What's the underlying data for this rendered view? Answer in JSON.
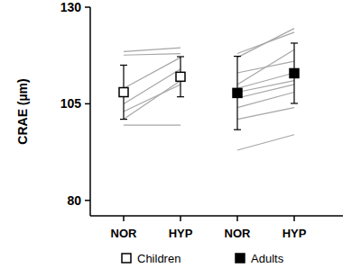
{
  "chart_data": {
    "type": "line",
    "ylabel": "CRAE (µm)",
    "categories": [
      "NOR",
      "HYP",
      "NOR",
      "HYP"
    ],
    "ylim": [
      76,
      130
    ],
    "yticks": [
      80,
      105,
      130
    ],
    "legend": "bottom",
    "series": [
      {
        "name": "Children",
        "color": "#000000",
        "marker": "square-open",
        "values": [
          108,
          112,
          null,
          null
        ],
        "errors": [
          7,
          5.2,
          null,
          null
        ],
        "individuals": [
          [
            118.5,
            119.5,
            null,
            null
          ],
          [
            117.6,
            118,
            null,
            null
          ],
          [
            109,
            117,
            null,
            null
          ],
          [
            105,
            114,
            null,
            null
          ],
          [
            103,
            110,
            null,
            null
          ],
          [
            101,
            111,
            null,
            null
          ],
          [
            99.5,
            99.5,
            null,
            null
          ]
        ]
      },
      {
        "name": "Adults",
        "color": "#000000",
        "marker": "square",
        "values": [
          null,
          null,
          107.8,
          112.9
        ],
        "errors": [
          null,
          null,
          9.5,
          7.8
        ],
        "individuals": [
          [
            null,
            null,
            118,
            123.5
          ],
          [
            null,
            null,
            117,
            124.5
          ],
          [
            null,
            null,
            113,
            116
          ],
          [
            null,
            null,
            110,
            119
          ],
          [
            null,
            null,
            109,
            113
          ],
          [
            null,
            null,
            108,
            111
          ],
          [
            null,
            null,
            106.5,
            110
          ],
          [
            null,
            null,
            104,
            108
          ],
          [
            null,
            null,
            101,
            104
          ],
          [
            null,
            null,
            93,
            97
          ]
        ]
      }
    ]
  }
}
